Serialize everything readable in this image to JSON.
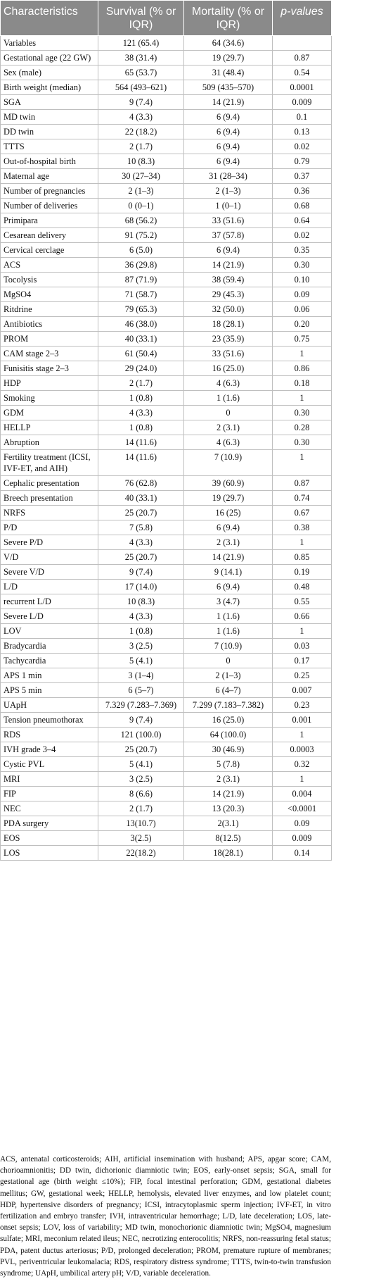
{
  "table": {
    "headers": [
      "Characteristics",
      "Survival (% or IQR)",
      "Mortality (% or IQR)",
      "p-values"
    ],
    "rows": [
      {
        "c": "Variables",
        "s": "121 (65.4)",
        "m": "64 (34.6)",
        "p": ""
      },
      {
        "c": "Gestational age (22 GW)",
        "s": "38 (31.4)",
        "m": "19 (29.7)",
        "p": "0.87"
      },
      {
        "c": "Sex (male)",
        "s": "65 (53.7)",
        "m": "31 (48.4)",
        "p": "0.54"
      },
      {
        "c": "Birth weight (median)",
        "s": "564 (493–621)",
        "m": "509 (435–570)",
        "p": "0.0001"
      },
      {
        "c": "SGA",
        "s": "9 (7.4)",
        "m": "14 (21.9)",
        "p": "0.009"
      },
      {
        "c": "MD twin",
        "s": "4 (3.3)",
        "m": "6 (9.4)",
        "p": "0.1"
      },
      {
        "c": "DD twin",
        "s": "22 (18.2)",
        "m": "6 (9.4)",
        "p": "0.13"
      },
      {
        "c": "TTTS",
        "s": "2 (1.7)",
        "m": "6 (9.4)",
        "p": "0.02"
      },
      {
        "c": "Out-of-hospital birth",
        "s": "10 (8.3)",
        "m": "6 (9.4)",
        "p": "0.79"
      },
      {
        "c": "Maternal age",
        "s": "30 (27–34)",
        "m": "31 (28–34)",
        "p": "0.37"
      },
      {
        "c": "Number of pregnancies",
        "s": "2 (1–3)",
        "m": "2 (1–3)",
        "p": "0.36"
      },
      {
        "c": "Number of deliveries",
        "s": "0 (0–1)",
        "m": "1 (0–1)",
        "p": "0.68"
      },
      {
        "c": "Primipara",
        "s": "68 (56.2)",
        "m": "33 (51.6)",
        "p": "0.64"
      },
      {
        "c": "Cesarean delivery",
        "s": "91 (75.2)",
        "m": "37 (57.8)",
        "p": "0.02"
      },
      {
        "c": "Cervical cerclage",
        "s": "6 (5.0)",
        "m": "6 (9.4)",
        "p": "0.35"
      },
      {
        "c": "ACS",
        "s": "36 (29.8)",
        "m": "14 (21.9)",
        "p": "0.30"
      },
      {
        "c": "Tocolysis",
        "s": "87 (71.9)",
        "m": "38 (59.4)",
        "p": "0.10"
      },
      {
        "c": "MgSO4",
        "s": "71 (58.7)",
        "m": "29 (45.3)",
        "p": "0.09"
      },
      {
        "c": "Ritdrine",
        "s": "79 (65.3)",
        "m": "32 (50.0)",
        "p": "0.06"
      },
      {
        "c": "Antibiotics",
        "s": "46 (38.0)",
        "m": "18 (28.1)",
        "p": "0.20"
      },
      {
        "c": "PROM",
        "s": "40 (33.1)",
        "m": "23 (35.9)",
        "p": "0.75"
      },
      {
        "c": "CAM stage 2–3",
        "s": "61 (50.4)",
        "m": "33 (51.6)",
        "p": "1"
      },
      {
        "c": "Funisitis stage 2–3",
        "s": "29 (24.0)",
        "m": "16 (25.0)",
        "p": "0.86"
      },
      {
        "c": "HDP",
        "s": "2 (1.7)",
        "m": "4 (6.3)",
        "p": "0.18"
      },
      {
        "c": "Smoking",
        "s": "1 (0.8)",
        "m": "1 (1.6)",
        "p": "1"
      },
      {
        "c": "GDM",
        "s": "4 (3.3)",
        "m": "0",
        "p": "0.30"
      },
      {
        "c": "HELLP",
        "s": "1 (0.8)",
        "m": "2 (3.1)",
        "p": "0.28"
      },
      {
        "c": "Abruption",
        "s": "14 (11.6)",
        "m": "4 (6.3)",
        "p": "0.30"
      },
      {
        "c": "Fertility treatment (ICSI, IVF-ET, and AIH)",
        "s": "14 (11.6)",
        "m": "7 (10.9)",
        "p": "1"
      },
      {
        "c": "Cephalic presentation",
        "s": "76 (62.8)",
        "m": "39 (60.9)",
        "p": "0.87"
      },
      {
        "c": "Breech presentation",
        "s": "40 (33.1)",
        "m": "19 (29.7)",
        "p": "0.74"
      },
      {
        "c": "NRFS",
        "s": "25 (20.7)",
        "m": "16 (25)",
        "p": "0.67"
      },
      {
        "c": "P/D",
        "s": "7 (5.8)",
        "m": "6 (9.4)",
        "p": "0.38"
      },
      {
        "c": "Severe P/D",
        "s": "4 (3.3)",
        "m": "2 (3.1)",
        "p": "1"
      },
      {
        "c": "V/D",
        "s": "25 (20.7)",
        "m": "14 (21.9)",
        "p": "0.85"
      },
      {
        "c": "Severe V/D",
        "s": "9 (7.4)",
        "m": "9 (14.1)",
        "p": "0.19"
      },
      {
        "c": "L/D",
        "s": "17 (14.0)",
        "m": "6 (9.4)",
        "p": "0.48"
      },
      {
        "c": "recurrent L/D",
        "s": "10 (8.3)",
        "m": "3 (4.7)",
        "p": "0.55"
      },
      {
        "c": "Severe L/D",
        "s": "4 (3.3)",
        "m": "1 (1.6)",
        "p": "0.66"
      },
      {
        "c": "LOV",
        "s": "1 (0.8)",
        "m": "1 (1.6)",
        "p": "1"
      },
      {
        "c": "Bradycardia",
        "s": "3 (2.5)",
        "m": "7 (10.9)",
        "p": "0.03"
      },
      {
        "c": "Tachycardia",
        "s": "5 (4.1)",
        "m": "0",
        "p": "0.17"
      },
      {
        "c": "APS 1 min",
        "s": "3 (1–4)",
        "m": "2 (1–3)",
        "p": "0.25"
      },
      {
        "c": "APS 5 min",
        "s": "6 (5–7)",
        "m": "6 (4–7)",
        "p": "0.007"
      },
      {
        "c": "UApH",
        "s": "7.329 (7.283–7.369)",
        "m": "7.299 (7.183–7.382)",
        "p": "0.23"
      },
      {
        "c": "Tension pneumothorax",
        "s": "9 (7.4)",
        "m": "16 (25.0)",
        "p": "0.001"
      },
      {
        "c": "RDS",
        "s": "121 (100.0)",
        "m": "64 (100.0)",
        "p": "1"
      },
      {
        "c": "IVH grade 3–4",
        "s": "25 (20.7)",
        "m": "30 (46.9)",
        "p": "0.0003"
      },
      {
        "c": "Cystic PVL",
        "s": "5 (4.1)",
        "m": "5 (7.8)",
        "p": "0.32"
      },
      {
        "c": "MRI",
        "s": "3 (2.5)",
        "m": "2 (3.1)",
        "p": "1"
      },
      {
        "c": "FIP",
        "s": "8 (6.6)",
        "m": "14 (21.9)",
        "p": "0.004"
      },
      {
        "c": "NEC",
        "s": "2 (1.7)",
        "m": "13 (20.3)",
        "p": "<0.0001"
      },
      {
        "c": "PDA surgery",
        "s": "13(10.7)",
        "m": "2(3.1)",
        "p": "0.09"
      },
      {
        "c": "EOS",
        "s": "3(2.5)",
        "m": "8(12.5)",
        "p": "0.009"
      },
      {
        "c": "LOS",
        "s": "22(18.2)",
        "m": "18(28.1)",
        "p": "0.14"
      }
    ]
  },
  "footnote": "ACS, antenatal corticosteroids; AIH, artificial insemination with husband; APS, apgar score; CAM, chorioamnionitis; DD twin, dichorionic diamniotic twin; EOS, early-onset sepsis; SGA, small for gestational age (birth weight ≤10%); FIP, focal intestinal perforation; GDM, gestational diabetes mellitus; GW, gestational week; HELLP, hemolysis, elevated liver enzymes, and low platelet count; HDP, hypertensive disorders of pregnancy; ICSI, intracytoplasmic sperm injection; IVF-ET, in vitro fertilization and embryo transfer; IVH, intraventricular hemorrhage; L/D, late deceleration; LOS, late-onset sepsis; LOV, loss of variability; MD twin, monochorionic diamniotic twin; MgSO4, magnesium sulfate; MRI, meconium related ileus; NEC, necrotizing enterocolitis; NRFS, non-reassuring fetal status; PDA, patent ductus arteriosus; P/D, prolonged deceleration; PROM, premature rupture of membranes; PVL, periventricular leukomalacia; RDS, respiratory distress syndrome; TTTS, twin-to-twin transfusion syndrome; UApH, umbilical artery pH; V/D, variable deceleration."
}
